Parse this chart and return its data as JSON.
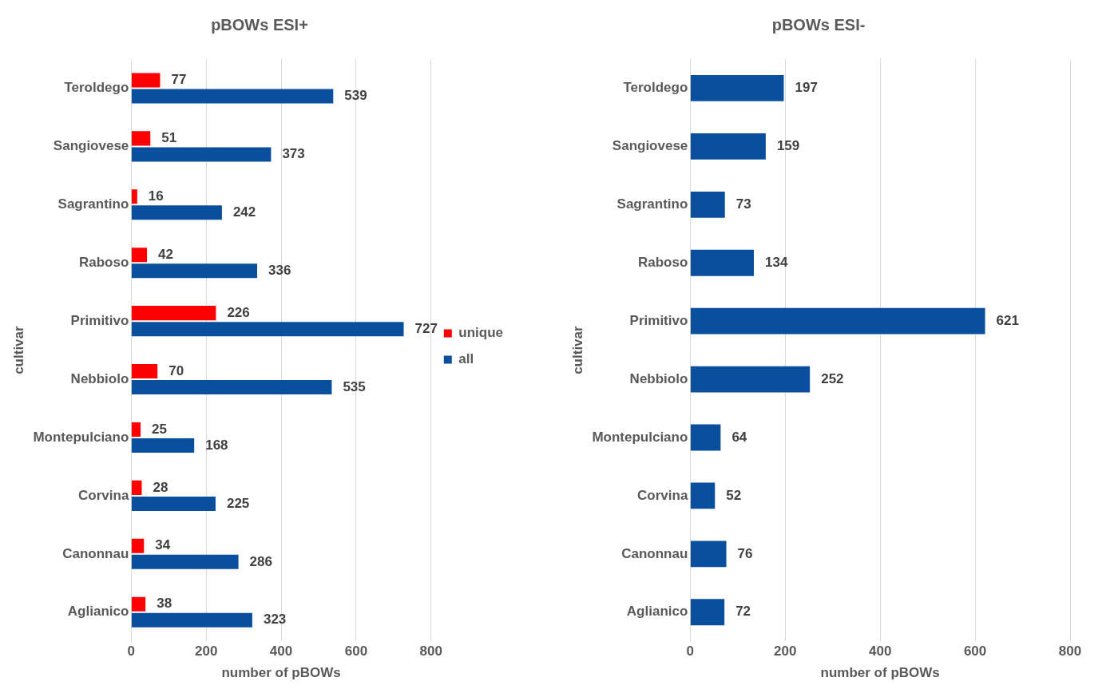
{
  "chart_data": [
    {
      "type": "bar",
      "orientation": "horizontal",
      "title": "pBOWs ESI+",
      "xlabel": "number of pBOWs",
      "ylabel": "cultivar",
      "categories": [
        "Teroldego",
        "Sangiovese",
        "Sagrantino",
        "Raboso",
        "Primitivo",
        "Nebbiolo",
        "Montepulciano",
        "Corvina",
        "Canonnau",
        "Aglianico"
      ],
      "series": [
        {
          "name": "unique",
          "color": "#ff0000",
          "values": [
            77,
            51,
            16,
            42,
            226,
            70,
            25,
            28,
            34,
            38
          ]
        },
        {
          "name": "all",
          "color": "#0a4f9e",
          "values": [
            539,
            373,
            242,
            336,
            727,
            535,
            168,
            225,
            286,
            323
          ]
        }
      ],
      "xlim": [
        0,
        800
      ],
      "xticks": [
        0,
        200,
        400,
        600,
        800
      ],
      "grid": "x",
      "legend": "right",
      "data_labels": true
    },
    {
      "type": "bar",
      "orientation": "horizontal",
      "title": "pBOWs ESI-",
      "xlabel": "number of pBOWs",
      "ylabel": "cultivar",
      "categories": [
        "Teroldego",
        "Sangiovese",
        "Sagrantino",
        "Raboso",
        "Primitivo",
        "Nebbiolo",
        "Montepulciano",
        "Corvina",
        "Canonnau",
        "Aglianico"
      ],
      "series": [
        {
          "color": "#0a4f9e",
          "values": [
            197,
            159,
            73,
            134,
            621,
            252,
            64,
            52,
            76,
            72
          ]
        }
      ],
      "xlim": [
        0,
        800
      ],
      "xticks": [
        0,
        200,
        400,
        600,
        800
      ],
      "grid": "x",
      "data_labels": true
    }
  ]
}
